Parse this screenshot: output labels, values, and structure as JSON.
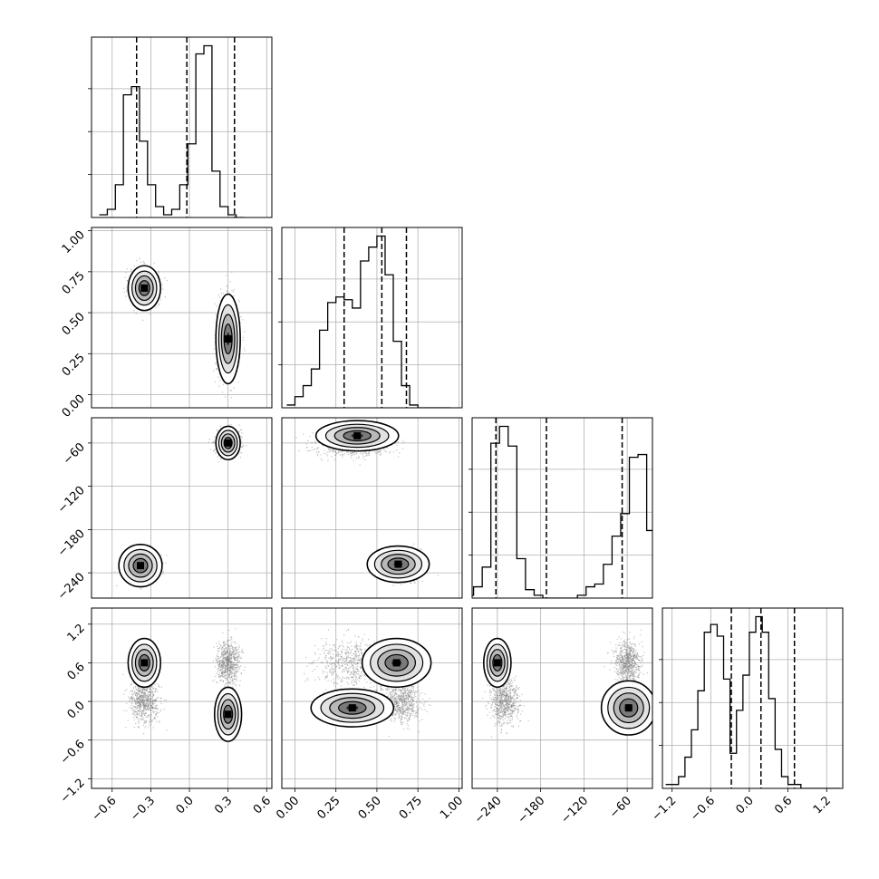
{
  "chart_data": {
    "type": "corner",
    "parameters": [
      {
        "ticks": [
          -0.6,
          -0.3,
          0.0,
          0.3,
          0.6
        ],
        "tick_labels": [
          "−0.6",
          "−0.3",
          "0.0",
          "0.3",
          "0.6"
        ],
        "range": [
          -0.76,
          0.64
        ],
        "quantiles": [
          -0.41,
          -0.02,
          0.35
        ]
      },
      {
        "ticks": [
          0.0,
          0.25,
          0.5,
          0.75,
          1.0
        ],
        "tick_labels": [
          "0.00",
          "0.25",
          "0.50",
          "0.75",
          "1.00"
        ],
        "range": [
          -0.08,
          1.02
        ],
        "quantiles": [
          0.3,
          0.53,
          0.68
        ]
      },
      {
        "ticks": [
          -240,
          -180,
          -120,
          -60
        ],
        "tick_labels": [
          "−240",
          "−180",
          "−120",
          "−60"
        ],
        "range": [
          -275,
          -25
        ],
        "quantiles": [
          -242,
          -172,
          -67
        ]
      },
      {
        "ticks": [
          -1.2,
          -0.6,
          0.0,
          0.6,
          1.2
        ],
        "tick_labels": [
          "−1.2",
          "−0.6",
          "0.0",
          "0.6",
          "1.2"
        ],
        "range": [
          -1.35,
          1.45
        ],
        "quantiles": [
          -0.28,
          0.18,
          0.7
        ]
      }
    ],
    "histograms": [
      {
        "param": 0,
        "edges_start": -0.7,
        "bin_width": 0.0625,
        "counts": [
          1,
          3,
          12,
          45,
          48,
          28,
          12,
          4,
          1,
          3,
          12,
          27,
          60,
          63,
          17,
          4,
          1,
          0
        ]
      },
      {
        "param": 1,
        "edges_start": -0.05,
        "bin_width": 0.05,
        "counts": [
          1,
          4,
          8,
          14,
          28,
          38,
          40,
          39,
          36,
          53,
          58,
          62,
          48,
          24,
          8,
          1,
          0,
          0,
          0,
          0
        ]
      },
      {
        "param": 2,
        "edges_start": -285,
        "bin_width": 12,
        "counts": [
          1,
          4,
          11,
          55,
          61,
          54,
          14,
          3,
          1,
          0,
          0,
          0,
          0,
          1,
          4,
          5,
          12,
          22,
          30,
          50,
          51,
          24,
          2,
          0
        ]
      },
      {
        "param": 3,
        "edges_start": -1.3,
        "bin_width": 0.1,
        "counts": [
          1,
          1,
          3,
          8,
          15,
          25,
          40,
          42,
          39,
          28,
          9,
          20,
          29,
          40,
          44,
          40,
          23,
          10,
          3,
          1,
          1,
          0,
          0,
          0,
          0,
          0,
          0
        ]
      }
    ],
    "modes": [
      {
        "w": 0.5,
        "mean": [
          -0.35,
          0.65,
          -230,
          0.0
        ],
        "sd": [
          0.055,
          0.06,
          10,
          0.17
        ]
      },
      {
        "w": 0.5,
        "mean": [
          0.3,
          0.35,
          -60,
          0.6
        ],
        "sd": [
          0.045,
          0.12,
          9,
          0.17
        ]
      }
    ],
    "peaks": [
      {
        "x": 0,
        "y": 1,
        "mode": 0,
        "at": [
          -0.35,
          0.65
        ],
        "s": [
          0.06,
          0.065
        ]
      },
      {
        "x": 0,
        "y": 1,
        "mode": 1,
        "at": [
          0.3,
          0.34
        ],
        "s": [
          0.045,
          0.13
        ]
      },
      {
        "x": 0,
        "y": 2,
        "mode": 0,
        "at": [
          -0.38,
          -230
        ],
        "s": [
          0.08,
          14
        ]
      },
      {
        "x": 0,
        "y": 2,
        "mode": 1,
        "at": [
          0.3,
          -60
        ],
        "s": [
          0.045,
          11
        ]
      },
      {
        "x": 1,
        "y": 2,
        "mode": 0,
        "at": [
          0.63,
          -228
        ],
        "s": [
          0.09,
          12
        ]
      },
      {
        "x": 1,
        "y": 2,
        "mode": 1,
        "at": [
          0.38,
          -50
        ],
        "s": [
          0.12,
          10
        ]
      },
      {
        "x": 0,
        "y": 3,
        "mode": 0,
        "at": [
          -0.35,
          0.6
        ],
        "s": [
          0.06,
          0.18
        ]
      },
      {
        "x": 0,
        "y": 3,
        "mode": 1,
        "at": [
          0.3,
          -0.2
        ],
        "s": [
          0.05,
          0.2
        ]
      },
      {
        "x": 1,
        "y": 3,
        "mode": 0,
        "at": [
          0.62,
          0.6
        ],
        "s": [
          0.1,
          0.18
        ]
      },
      {
        "x": 1,
        "y": 3,
        "mode": 1,
        "at": [
          0.35,
          -0.1
        ],
        "s": [
          0.12,
          0.14
        ]
      },
      {
        "x": 2,
        "y": 3,
        "mode": 0,
        "at": [
          -240,
          0.6
        ],
        "s": [
          9,
          0.18
        ]
      },
      {
        "x": 2,
        "y": 3,
        "mode": 1,
        "at": [
          -58,
          -0.1
        ],
        "s": [
          18,
          0.2
        ]
      }
    ],
    "grid": true,
    "colors": {
      "line": "#000000",
      "grid": "#b0b0b0",
      "scatter": "#7f7f7f"
    }
  }
}
